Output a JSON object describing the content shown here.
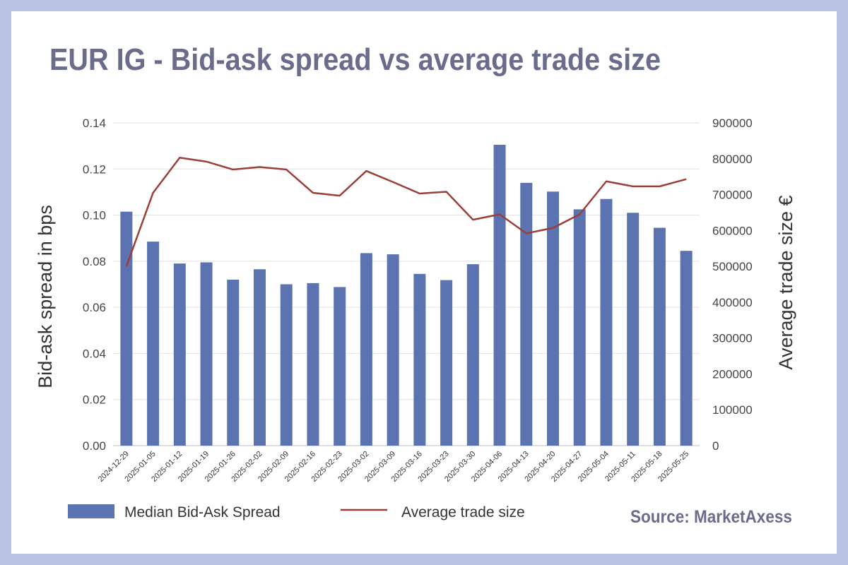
{
  "chart_data": {
    "type": "bar",
    "title": "EUR IG - Bid-ask spread vs average trade size",
    "source": "Source: MarketAxess",
    "ylabel_left": "Bid-ask spread in bps",
    "ylabel_right": "Average trade size €",
    "ylim_left": [
      0,
      0.14
    ],
    "ylim_right": [
      0,
      900000
    ],
    "yticks_left": [
      "0.00",
      "0.02",
      "0.04",
      "0.06",
      "0.08",
      "0.10",
      "0.12",
      "0.14"
    ],
    "yticks_right": [
      "0",
      "100000",
      "200000",
      "300000",
      "400000",
      "500000",
      "600000",
      "700000",
      "800000",
      "900000"
    ],
    "grid": true,
    "legend_position": "bottom-left",
    "categories": [
      "2024-12-29",
      "2025-01-05",
      "2025-01-12",
      "2025-01-19",
      "2025-01-26",
      "2025-02-02",
      "2025-02-09",
      "2025-02-16",
      "2025-02-23",
      "2025-03-02",
      "2025-03-09",
      "2025-03-16",
      "2025-03-23",
      "2025-03-30",
      "2025-04-06",
      "2025-04-13",
      "2025-04-20",
      "2025-04-27",
      "2025-05-04",
      "2025-05-11",
      "2025-05-18",
      "2025-05-25"
    ],
    "series": [
      {
        "name": "Median Bid-Ask Spread",
        "type": "bar",
        "axis": "left",
        "color": "#5b73b0",
        "values": [
          0.1015,
          0.0885,
          0.079,
          0.0795,
          0.072,
          0.0765,
          0.07,
          0.0705,
          0.0688,
          0.0835,
          0.083,
          0.0745,
          0.0718,
          0.0787,
          0.1305,
          0.114,
          0.1102,
          0.1025,
          0.107,
          0.101,
          0.0945,
          0.0845
        ]
      },
      {
        "name": "Average trade size",
        "type": "line",
        "axis": "right",
        "color": "#9a3f3a",
        "values": [
          500000,
          705000,
          803000,
          792000,
          770000,
          777000,
          770000,
          705000,
          697000,
          766000,
          735000,
          703000,
          708000,
          630000,
          645000,
          592000,
          607000,
          645000,
          737000,
          723000,
          723000,
          743000
        ]
      }
    ]
  }
}
